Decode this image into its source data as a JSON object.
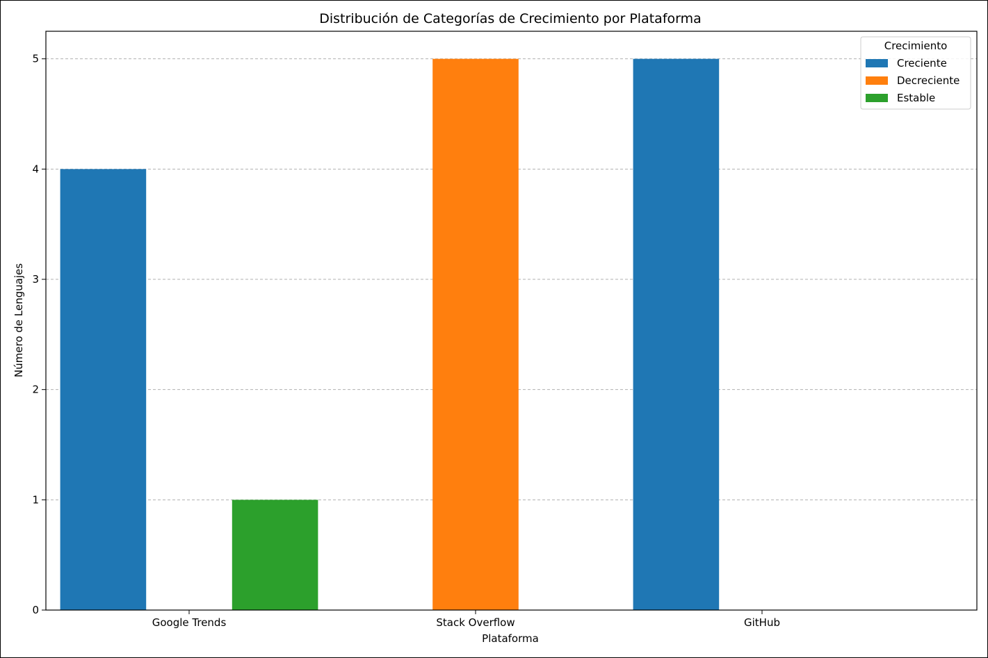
{
  "chart_data": {
    "type": "bar",
    "title": "Distribución de Categorías de Crecimiento por Plataforma",
    "xlabel": "Plataforma",
    "ylabel": "Número de Lenguajes",
    "categories": [
      "Google Trends",
      "Stack Overflow",
      "GitHub"
    ],
    "series": [
      {
        "name": "Creciente",
        "color": "#1f77b4",
        "values": [
          4,
          0,
          5
        ]
      },
      {
        "name": "Decreciente",
        "color": "#ff7f0e",
        "values": [
          0,
          5,
          0
        ]
      },
      {
        "name": "Estable",
        "color": "#2ca02c",
        "values": [
          1,
          0,
          0
        ]
      }
    ],
    "ylim": [
      0,
      5.25
    ],
    "yticks": [
      "0",
      "1",
      "2",
      "3",
      "4",
      "5"
    ],
    "grid": "y-dashed",
    "legend": {
      "title": "Crecimiento",
      "placement": "top-right"
    }
  }
}
